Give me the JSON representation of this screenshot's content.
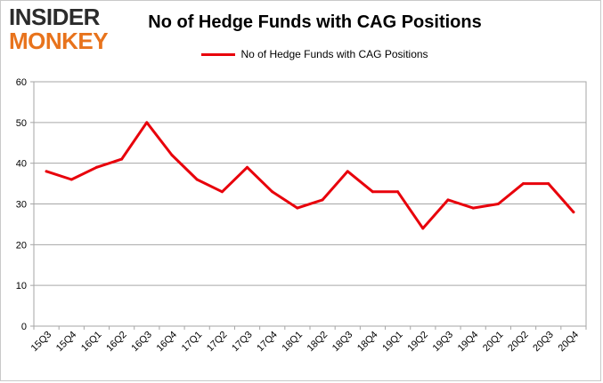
{
  "logo": {
    "top": "INSIDER",
    "bottom": "MONKEY"
  },
  "chart_data": {
    "type": "line",
    "title": "No of Hedge Funds with CAG Positions",
    "xlabel": "",
    "ylabel": "",
    "categories": [
      "15Q3",
      "15Q4",
      "16Q1",
      "16Q2",
      "16Q3",
      "16Q4",
      "17Q1",
      "17Q2",
      "17Q3",
      "17Q4",
      "18Q1",
      "18Q2",
      "18Q3",
      "18Q4",
      "19Q1",
      "19Q2",
      "19Q3",
      "19Q4",
      "20Q1",
      "20Q2",
      "20Q3",
      "20Q4"
    ],
    "series": [
      {
        "name": "No of Hedge Funds with CAG Positions",
        "color": "#e8000b",
        "values": [
          38,
          36,
          39,
          41,
          50,
          42,
          36,
          33,
          39,
          33,
          29,
          31,
          38,
          33,
          33,
          24,
          31,
          29,
          30,
          35,
          35,
          28
        ]
      }
    ],
    "ylim": [
      0,
      60
    ],
    "yticks": [
      0,
      10,
      20,
      30,
      40,
      50,
      60
    ],
    "grid": true,
    "legend_position": "top-center"
  }
}
